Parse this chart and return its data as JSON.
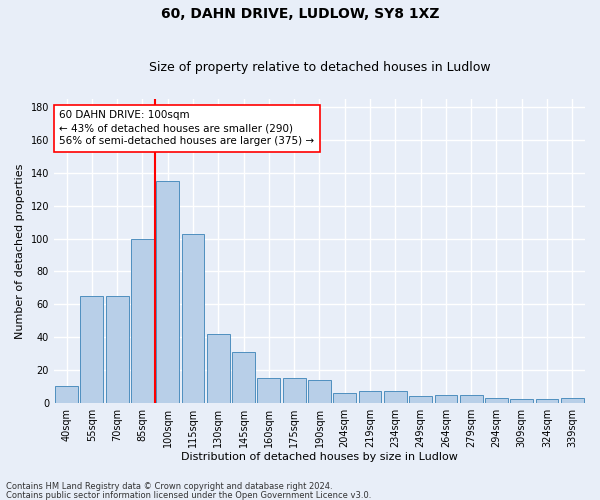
{
  "title1": "60, DAHN DRIVE, LUDLOW, SY8 1XZ",
  "title2": "Size of property relative to detached houses in Ludlow",
  "xlabel": "Distribution of detached houses by size in Ludlow",
  "ylabel": "Number of detached properties",
  "categories": [
    "40sqm",
    "55sqm",
    "70sqm",
    "85sqm",
    "100sqm",
    "115sqm",
    "130sqm",
    "145sqm",
    "160sqm",
    "175sqm",
    "190sqm",
    "204sqm",
    "219sqm",
    "234sqm",
    "249sqm",
    "264sqm",
    "279sqm",
    "294sqm",
    "309sqm",
    "324sqm",
    "339sqm"
  ],
  "values": [
    10,
    65,
    65,
    100,
    135,
    103,
    42,
    31,
    15,
    15,
    14,
    6,
    7,
    7,
    4,
    5,
    5,
    3,
    2,
    2,
    3
  ],
  "bar_color": "#b8cfe8",
  "bar_edge_color": "#4f8fbf",
  "vline_color": "red",
  "vline_x_index": 4,
  "ylim": [
    0,
    185
  ],
  "yticks": [
    0,
    20,
    40,
    60,
    80,
    100,
    120,
    140,
    160,
    180
  ],
  "annotation_line1": "60 DAHN DRIVE: 100sqm",
  "annotation_line2": "← 43% of detached houses are smaller (290)",
  "annotation_line3": "56% of semi-detached houses are larger (375) →",
  "annotation_box_color": "white",
  "annotation_box_edge": "red",
  "footer1": "Contains HM Land Registry data © Crown copyright and database right 2024.",
  "footer2": "Contains public sector information licensed under the Open Government Licence v3.0.",
  "background_color": "#e8eef8",
  "grid_color": "white",
  "title_fontsize": 10,
  "subtitle_fontsize": 9,
  "tick_fontsize": 7,
  "ylabel_fontsize": 8,
  "xlabel_fontsize": 8,
  "annotation_fontsize": 7.5,
  "footer_fontsize": 6
}
